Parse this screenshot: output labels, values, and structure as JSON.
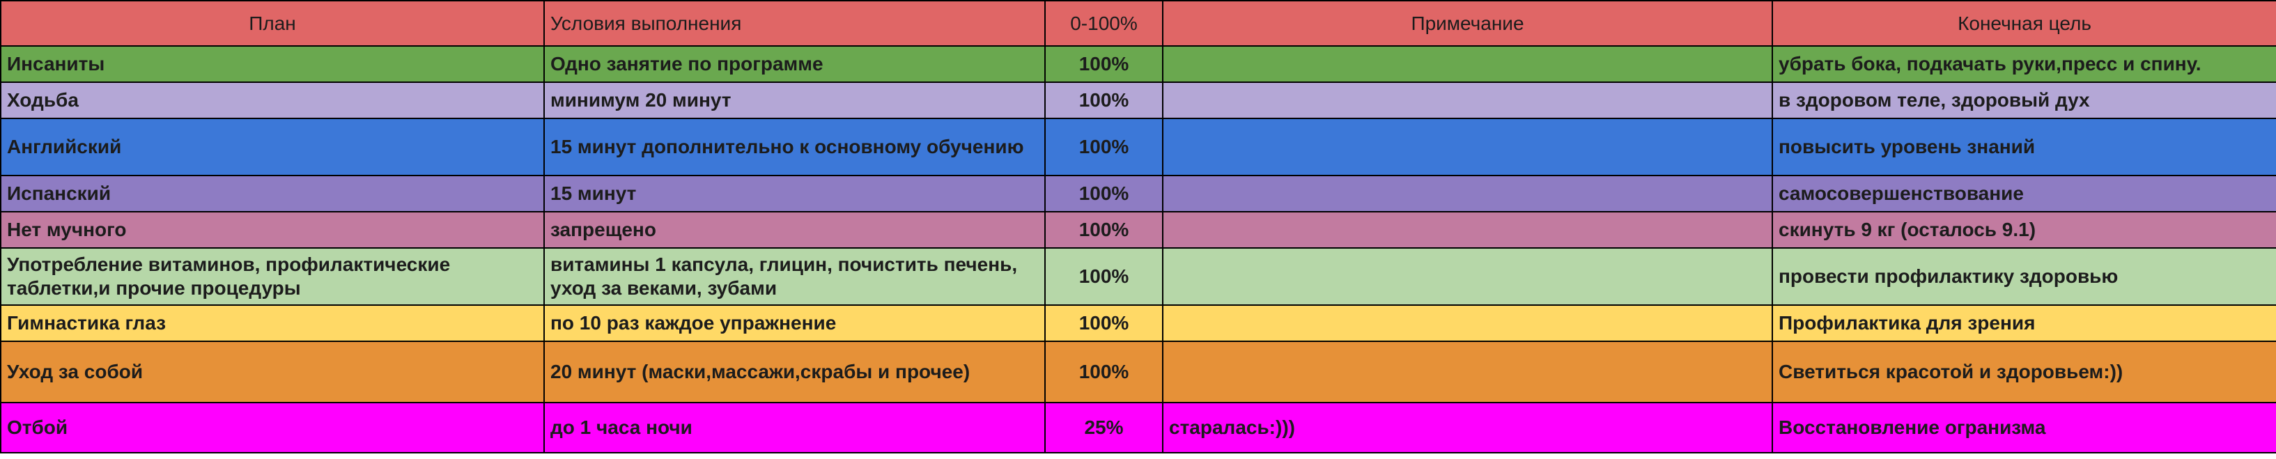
{
  "colors": {
    "header": "#e06666",
    "grid_border": "#000000",
    "text": "#1c1c1c"
  },
  "header": {
    "plan": "План",
    "conditions": "Условия выполнения",
    "percent": "0-100%",
    "note": "Примечание",
    "goal": "Конечная цель"
  },
  "rows": [
    {
      "plan": "Инсаниты",
      "conditions": "Одно занятие по программе",
      "percent": "100%",
      "note": "",
      "goal": "убрать бока, подкачать руки,пресс и спину.",
      "color": "#6aa84f"
    },
    {
      "plan": "Ходьба",
      "conditions": "минимум 20 минут",
      "percent": "100%",
      "note": "",
      "goal": "в здоровом теле, здоровый дух",
      "color": "#b4a7d6"
    },
    {
      "plan": "Английский",
      "conditions": "15 минут дополнительно к основному обучению",
      "percent": "100%",
      "note": "",
      "goal": "повысить уровень знаний",
      "color": "#3c78d8"
    },
    {
      "plan": "Испанский",
      "conditions": "15 минут",
      "percent": "100%",
      "note": "",
      "goal": "самосовершенствование",
      "color": "#8e7cc3"
    },
    {
      "plan": "Нет мучного",
      "conditions": "запрещено",
      "percent": "100%",
      "note": "",
      "goal": "скинуть 9 кг (осталось 9.1)",
      "color": "#c27ba0"
    },
    {
      "plan": "Употребление витаминов, профилактические таблетки,и прочие процедуры",
      "conditions": "витамины 1 капсула, глицин, почистить печень, уход за веками, зубами",
      "percent": "100%",
      "note": "",
      "goal": "провести профилактику здоровью",
      "color": "#b6d7a8"
    },
    {
      "plan": "Гимнастика глаз",
      "conditions": "по 10 раз каждое упражнение",
      "percent": "100%",
      "note": "",
      "goal": "Профилактика для зрения",
      "color": "#ffd966"
    },
    {
      "plan": "Уход за собой",
      "conditions": "20 минут (маски,массажи,скрабы и прочее)",
      "percent": "100%",
      "note": "",
      "goal": "Светиться красотой и здоровьем:))",
      "color": "#e69138"
    },
    {
      "plan": "Отбой",
      "conditions": "до 1 часа ночи",
      "percent": "25%",
      "note": "старалась:)))",
      "goal": "Восстановление огранизма",
      "color": "#ff00ff"
    }
  ]
}
